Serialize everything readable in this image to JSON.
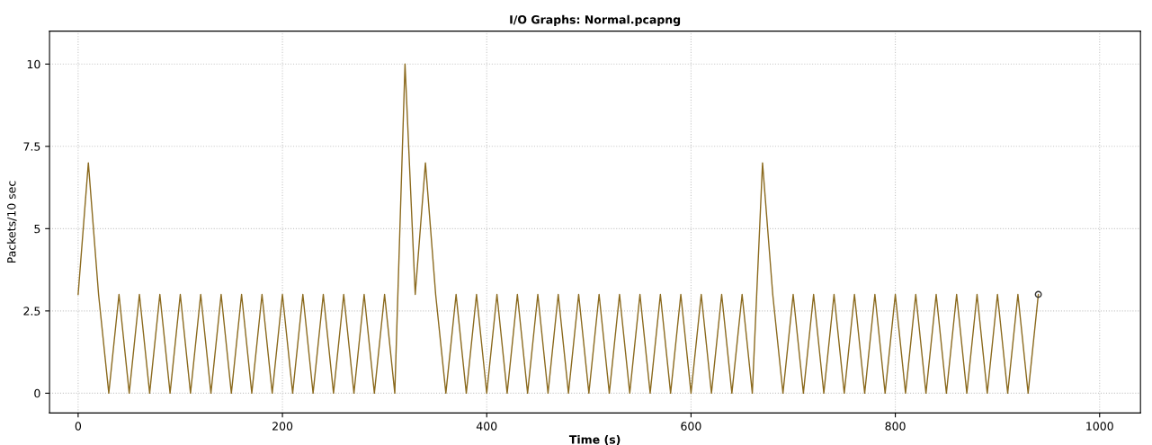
{
  "chart_data": {
    "type": "line",
    "title": "I/O Graphs: Normal.pcapng",
    "xlabel": "Time (s)",
    "ylabel": "Packets/10 sec",
    "xlim": [
      -28,
      1040
    ],
    "xticks": [
      0,
      200,
      400,
      600,
      800,
      1000
    ],
    "ylim": [
      -0.6,
      11
    ],
    "yticks": [
      0,
      2.5,
      5,
      7.5,
      10
    ],
    "grid": true,
    "marker": "none",
    "line_style": "solid",
    "series": [
      {
        "color": "#8b6a1e",
        "x": [
          0,
          10,
          20,
          30,
          40,
          50,
          60,
          70,
          80,
          90,
          100,
          110,
          120,
          130,
          140,
          150,
          160,
          170,
          180,
          190,
          200,
          210,
          220,
          230,
          240,
          250,
          260,
          270,
          280,
          290,
          300,
          310,
          320,
          330,
          340,
          350,
          360,
          370,
          380,
          390,
          400,
          410,
          420,
          430,
          440,
          450,
          460,
          470,
          480,
          490,
          500,
          510,
          520,
          530,
          540,
          550,
          560,
          570,
          580,
          590,
          600,
          610,
          620,
          630,
          640,
          650,
          660,
          670,
          680,
          690,
          700,
          710,
          720,
          730,
          740,
          750,
          760,
          770,
          780,
          790,
          800,
          810,
          820,
          830,
          840,
          850,
          860,
          870,
          880,
          890,
          900,
          910,
          920,
          930,
          940
        ],
        "values": [
          3,
          7,
          3,
          0,
          3,
          0,
          3,
          0,
          3,
          0,
          3,
          0,
          3,
          0,
          3,
          0,
          3,
          0,
          3,
          0,
          3,
          0,
          3,
          0,
          3,
          0,
          3,
          0,
          3,
          0,
          3,
          0,
          10,
          3,
          7,
          3,
          0,
          3,
          0,
          3,
          0,
          3,
          0,
          3,
          0,
          3,
          0,
          3,
          0,
          3,
          0,
          3,
          0,
          3,
          0,
          3,
          0,
          3,
          0,
          3,
          0,
          3,
          0,
          3,
          0,
          3,
          0,
          7,
          3,
          0,
          3,
          0,
          3,
          0,
          3,
          0,
          3,
          0,
          3,
          0,
          3,
          0,
          3,
          0,
          3,
          0,
          3,
          0,
          3,
          0,
          3,
          0,
          3,
          0,
          3
        ]
      },
      {
        "type": "scatter",
        "marker": "circle",
        "color": "#333333",
        "x": [
          940
        ],
        "values": [
          3
        ]
      }
    ]
  }
}
